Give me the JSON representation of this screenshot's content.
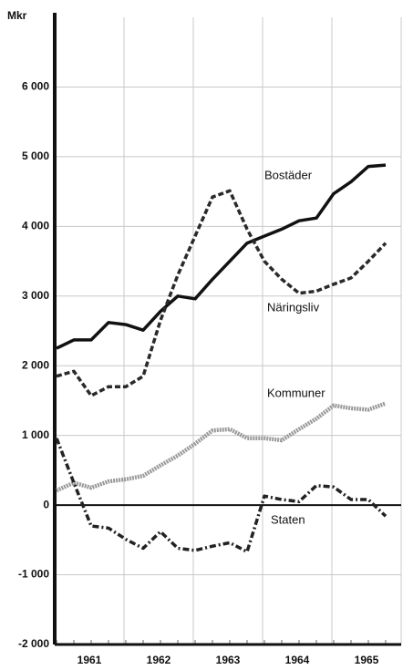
{
  "chart_data": {
    "type": "line",
    "y_label": "Mkr",
    "categories": [
      "1961",
      null,
      null,
      null,
      "1962",
      null,
      null,
      null,
      "1963",
      null,
      null,
      null,
      "1964",
      null,
      null,
      null,
      "1965",
      null,
      null,
      null
    ],
    "series": [
      {
        "name": "Bostäder",
        "color": "#111111",
        "values": [
          2250,
          2370,
          2370,
          2620,
          2590,
          2510,
          2780,
          3000,
          2960,
          3240,
          3500,
          3760,
          3860,
          3960,
          4080,
          4120,
          4470,
          4640,
          4860,
          4880
        ]
      },
      {
        "name": "Näringsliv",
        "color": "#2a2a2a",
        "values": [
          1850,
          1920,
          1570,
          1700,
          1700,
          1850,
          2650,
          3300,
          3860,
          4420,
          4510,
          3960,
          3500,
          3240,
          3040,
          3070,
          3170,
          3260,
          3500,
          3760
        ]
      },
      {
        "name": "Kommuner",
        "color": "#999999",
        "values": [
          210,
          320,
          250,
          340,
          370,
          420,
          570,
          710,
          880,
          1070,
          1090,
          960,
          960,
          930,
          1090,
          1240,
          1430,
          1390,
          1370,
          1460
        ]
      },
      {
        "name": "Staten",
        "color": "#222222",
        "values": [
          960,
          320,
          -300,
          -330,
          -490,
          -620,
          -380,
          -620,
          -650,
          -590,
          -540,
          -670,
          130,
          80,
          50,
          280,
          260,
          80,
          80,
          -160
        ]
      }
    ],
    "ylim": [
      -2000,
      7000
    ],
    "yticks": [
      {
        "value": -2000,
        "label": "-2 000"
      },
      {
        "value": -1000,
        "label": "-1 000"
      },
      0,
      {
        "value": 1000,
        "label": "1 000"
      },
      {
        "value": 2000,
        "label": "2 000"
      },
      {
        "value": 3000,
        "label": "3 000"
      },
      {
        "value": 4000,
        "label": "4 000"
      },
      {
        "value": 5000,
        "label": "5 000"
      },
      {
        "value": 6000,
        "label": "6 000"
      }
    ],
    "grid": true
  }
}
